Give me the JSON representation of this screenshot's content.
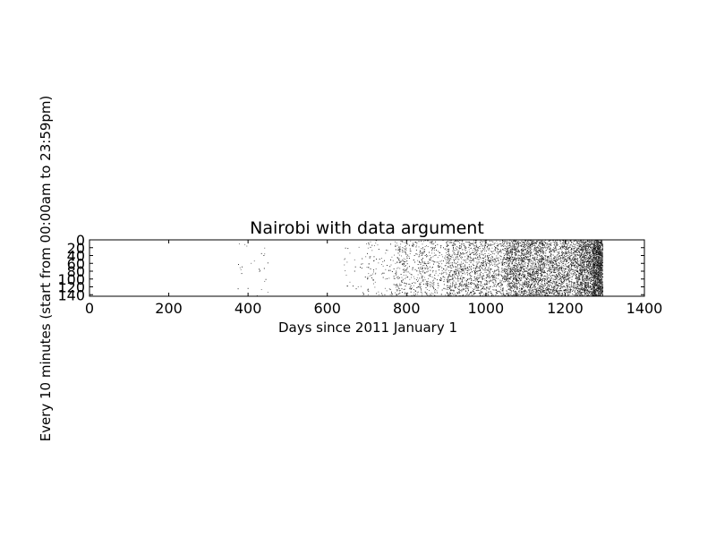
{
  "chart_data": {
    "type": "heatmap",
    "title": "Nairobi with data argument",
    "xlabel": "Days since 2011 January 1",
    "ylabel": "Every 10 minutes (start from 00:00am to 23:59pm)",
    "xlim": [
      0,
      1400
    ],
    "ylim": [
      144,
      0
    ],
    "xticks": [
      0,
      200,
      400,
      600,
      800,
      1000,
      1200,
      1400
    ],
    "yticks": [
      0,
      20,
      40,
      60,
      80,
      100,
      120,
      140
    ],
    "cmap": "binary",
    "grid": false,
    "density_profile": [
      {
        "x_range": [
          370,
          450
        ],
        "density": 0.002
      },
      {
        "x_range": [
          640,
          700
        ],
        "density": 0.004
      },
      {
        "x_range": [
          700,
          770
        ],
        "density": 0.01
      },
      {
        "x_range": [
          770,
          900
        ],
        "density": 0.025
      },
      {
        "x_range": [
          900,
          1050
        ],
        "density": 0.05
      },
      {
        "x_range": [
          1050,
          1150
        ],
        "density": 0.11
      },
      {
        "x_range": [
          1150,
          1230
        ],
        "density": 0.09
      },
      {
        "x_range": [
          1230,
          1270
        ],
        "density": 0.16
      },
      {
        "x_range": [
          1270,
          1295
        ],
        "density": 0.3
      }
    ]
  }
}
